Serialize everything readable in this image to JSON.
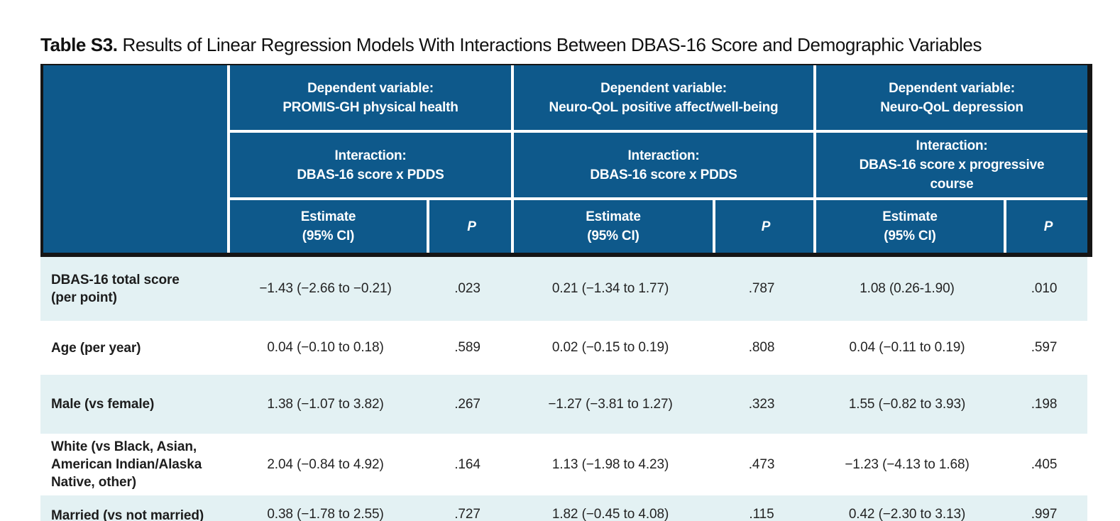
{
  "title": {
    "prefix": "Table S3.",
    "rest": " Results of Linear Regression Models With Interactions Between DBAS-16 Score and Demographic Variables"
  },
  "colors": {
    "header_blue": "#0E598B",
    "row_highlight": "#E3F1F3",
    "border_black": "#151515",
    "header_text": "#FFFFFF",
    "body_text": "#232323"
  },
  "table": {
    "groups": [
      {
        "dependent": "Dependent variable:\nPROMIS-GH physical health",
        "interaction": "Interaction:\nDBAS-16 score x PDDS"
      },
      {
        "dependent": "Dependent variable:\nNeuro-QoL positive affect/well-being",
        "interaction": "Interaction:\nDBAS-16 score x PDDS"
      },
      {
        "dependent": "Dependent variable:\nNeuro-QoL depression",
        "interaction": "Interaction:\nDBAS-16 score x progressive\ncourse"
      }
    ],
    "subheaders": {
      "estimate": "Estimate\n(95% CI)",
      "p": "P"
    },
    "rows": [
      {
        "label": "DBAS-16 total score\n(per point)",
        "cells": [
          "−1.43 (−2.66 to −0.21)",
          ".023",
          "0.21 (−1.34 to 1.77)",
          ".787",
          "1.08 (0.26-1.90)",
          ".010"
        ]
      },
      {
        "label": "Age (per year)",
        "cells": [
          "0.04 (−0.10 to 0.18)",
          ".589",
          "0.02 (−0.15 to 0.19)",
          ".808",
          "0.04 (−0.11 to 0.19)",
          ".597"
        ]
      },
      {
        "label": "Male (vs female)",
        "cells": [
          "1.38 (−1.07 to 3.82)",
          ".267",
          "−1.27 (−3.81 to 1.27)",
          ".323",
          "1.55 (−0.82 to 3.93)",
          ".198"
        ]
      },
      {
        "label": "White (vs Black, Asian,\nAmerican Indian/Alaska\nNative, other)",
        "cells": [
          "2.04 (−0.84 to 4.92)",
          ".164",
          "1.13 (−1.98 to 4.23)",
          ".473",
          "−1.23 (−4.13 to 1.68)",
          ".405"
        ]
      },
      {
        "label": "Married (vs not married)",
        "cells": [
          "0.38 (−1.78 to 2.55)",
          ".727",
          "1.82 (−0.45 to 4.08)",
          ".115",
          "0.42 (−2.30 to 3.13)",
          ".997"
        ]
      }
    ]
  }
}
